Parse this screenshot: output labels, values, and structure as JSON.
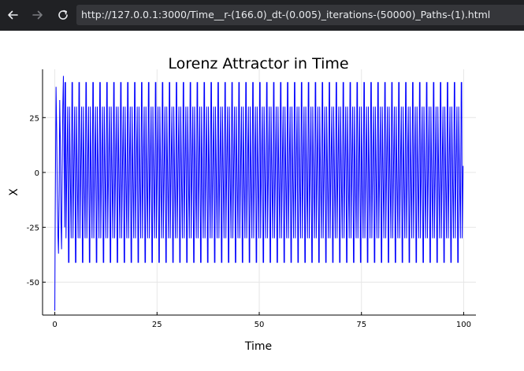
{
  "browser": {
    "url": "http://127.0.0.1:3000/Time__r-(166.0)_dt-(0.005)_iterations-(50000)_Paths-(1).html",
    "back_icon": "arrow-left-icon",
    "forward_icon": "arrow-right-icon",
    "reload_icon": "reload-icon"
  },
  "colors": {
    "browser_bg": "#202124",
    "url_bg": "#35363a",
    "series": "#0000ff",
    "grid": "#e6e6e6"
  },
  "chart_data": {
    "type": "line",
    "title": "Lorenz Attractor in Time",
    "xlabel": "Time",
    "ylabel": "X",
    "xlim": [
      -3,
      103
    ],
    "ylim": [
      -65,
      47
    ],
    "xticks": [
      0,
      25,
      50,
      75,
      100
    ],
    "yticks": [
      25,
      0,
      -25,
      -50
    ],
    "grid": true,
    "legend": "none",
    "series": [
      {
        "color": "#0000ff",
        "transient": [
          [
            0.0,
            -63
          ],
          [
            0.1,
            -20
          ],
          [
            0.2,
            10
          ],
          [
            0.3,
            39
          ],
          [
            0.45,
            20
          ],
          [
            0.6,
            -8
          ],
          [
            0.75,
            -28
          ],
          [
            0.9,
            -37
          ],
          [
            1.05,
            -10
          ],
          [
            1.2,
            33
          ],
          [
            1.35,
            15
          ],
          [
            1.5,
            -22
          ],
          [
            1.65,
            -35
          ],
          [
            1.8,
            0
          ],
          [
            1.95,
            30
          ],
          [
            2.1,
            44
          ],
          [
            2.25,
            10
          ],
          [
            2.4,
            -25
          ]
        ],
        "period_cycle": [
          [
            0.0,
            41
          ],
          [
            0.12,
            41
          ],
          [
            0.24,
            -30
          ],
          [
            0.45,
            3
          ],
          [
            0.65,
            30
          ],
          [
            0.85,
            -41
          ],
          [
            0.97,
            -41
          ],
          [
            1.09,
            30
          ],
          [
            1.3,
            -3
          ],
          [
            1.5,
            -30
          ],
          [
            1.7,
            41
          ]
        ],
        "cycle_period": 1.7,
        "steady_start": 2.5,
        "steady_end": 100
      }
    ]
  }
}
